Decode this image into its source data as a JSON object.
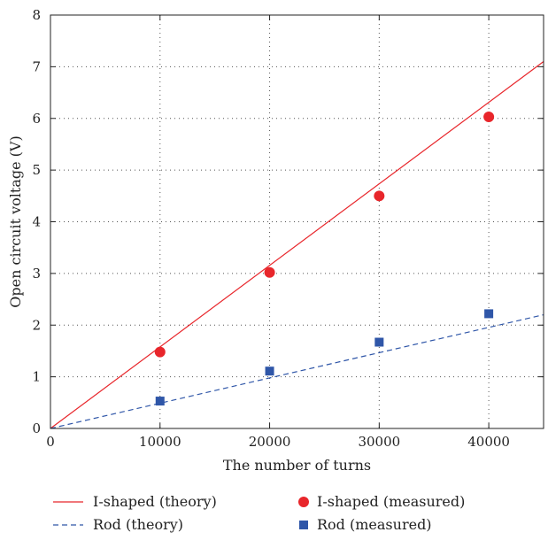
{
  "chart_data": {
    "type": "scatter",
    "xlabel": "The number of turns",
    "ylabel": "Open circuit voltage (V)",
    "xlim": [
      0,
      45000
    ],
    "ylim": [
      0,
      8
    ],
    "xticks": [
      0,
      10000,
      20000,
      30000,
      40000
    ],
    "xtick_labels": [
      "0",
      "10000",
      "20000",
      "30000",
      "40000"
    ],
    "yticks": [
      0,
      1,
      2,
      3,
      4,
      5,
      6,
      7,
      8
    ],
    "ytick_labels": [
      "0",
      "1",
      "2",
      "3",
      "4",
      "5",
      "6",
      "7",
      "8"
    ],
    "grid": "dotted",
    "legend_position": "bottom",
    "series": [
      {
        "name": "I-shaped (theory)",
        "kind": "line",
        "style": "solid",
        "color": "#e8262b",
        "x": [
          0,
          45000
        ],
        "y": [
          0,
          7.1
        ]
      },
      {
        "name": "Rod (theory)",
        "kind": "line",
        "style": "dashed",
        "color": "#2f56a8",
        "x": [
          0,
          45000
        ],
        "y": [
          0,
          2.2
        ]
      },
      {
        "name": "I-shaped (measured)",
        "kind": "scatter",
        "marker": "circle",
        "color": "#e8262b",
        "x": [
          10000,
          20000,
          30000,
          40000
        ],
        "y": [
          1.48,
          3.02,
          4.5,
          6.03
        ]
      },
      {
        "name": "Rod (measured)",
        "kind": "scatter",
        "marker": "square",
        "color": "#2f56a8",
        "x": [
          10000,
          20000,
          30000,
          40000
        ],
        "y": [
          0.53,
          1.11,
          1.67,
          2.22
        ]
      }
    ]
  }
}
